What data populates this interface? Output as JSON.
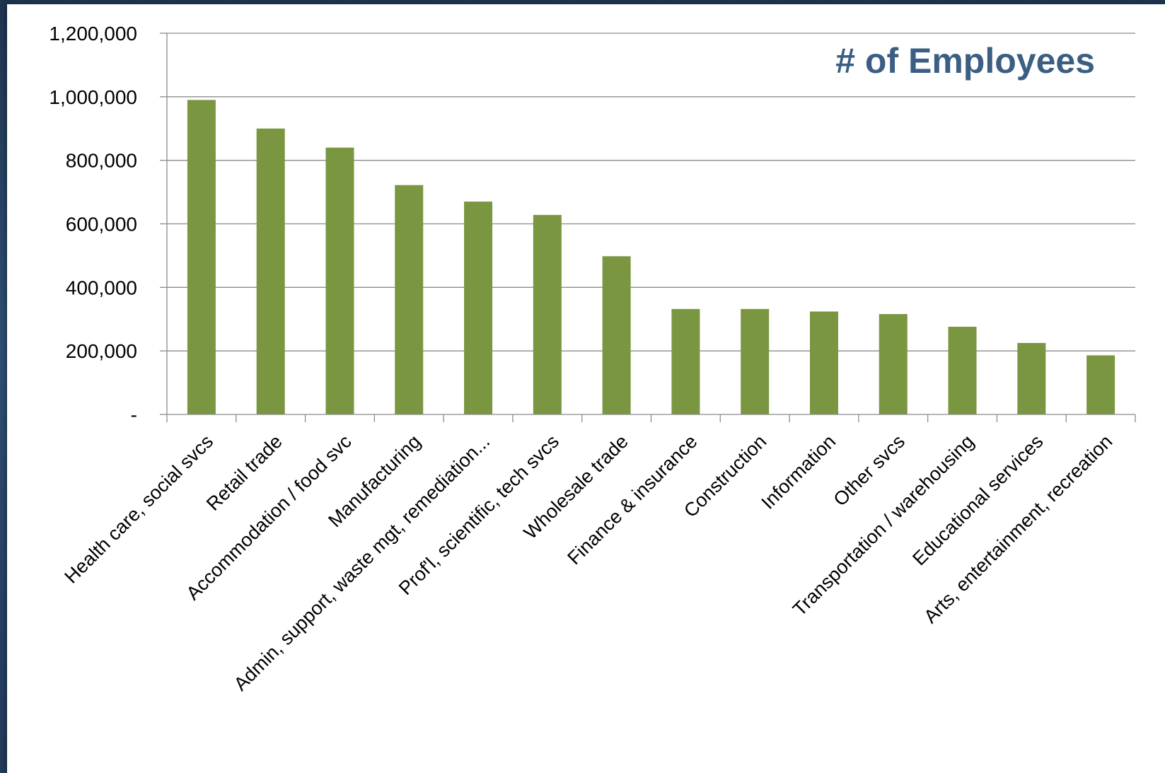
{
  "chart_data": {
    "type": "bar",
    "title": "# of Employees",
    "xlabel": "",
    "ylabel": "",
    "ylim": [
      0,
      1200000
    ],
    "yticks": [
      0,
      200000,
      400000,
      600000,
      800000,
      1000000,
      1200000
    ],
    "ytick_labels": [
      "-",
      "200,000",
      "400,000",
      "600,000",
      "800,000",
      "1,000,000",
      "1,200,000"
    ],
    "grid": true,
    "legend": "none",
    "bar_color": "#7a9641",
    "title_color": "#3b5e82",
    "categories": [
      "Health care, social svcs",
      "Retail trade",
      "Accommodation / food svc",
      "Manufacturing",
      "Admin, support, waste mgt, remediation...",
      "Prof'l, scientific, tech svcs",
      "Wholesale trade",
      "Finance & insurance",
      "Construction",
      "Information",
      "Other svcs",
      "Transportation / warehousing",
      "Educational services",
      "Arts, entertainment, recreation"
    ],
    "values": [
      990000,
      900000,
      840000,
      722000,
      670000,
      628000,
      498000,
      332000,
      332000,
      324000,
      316000,
      276000,
      225000,
      186000
    ]
  }
}
